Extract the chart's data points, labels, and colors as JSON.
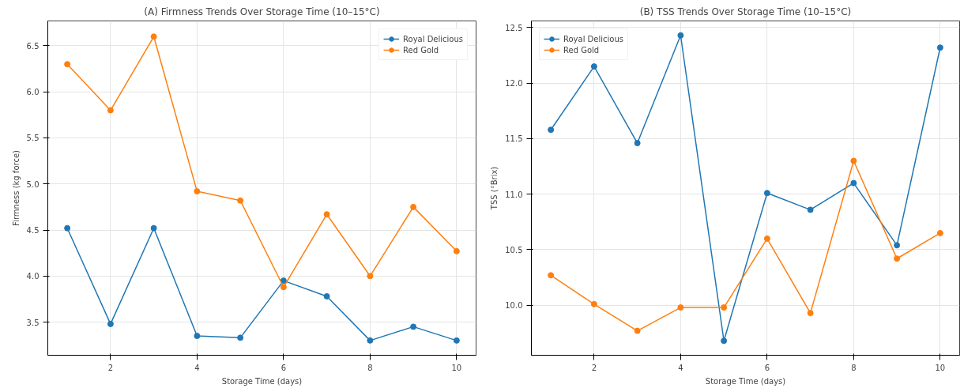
{
  "chart_data": [
    {
      "type": "line",
      "title": "(A) Firmness Trends Over Storage Time (10–15°C)",
      "xlabel": "Storage Time (days)",
      "ylabel": "Firmness (kg force)",
      "x": [
        1,
        2,
        3,
        4,
        5,
        6,
        7,
        8,
        9,
        10
      ],
      "series": [
        {
          "name": "Royal Delicious",
          "color": "#1f77b4",
          "values": [
            4.52,
            3.48,
            4.52,
            3.35,
            3.33,
            3.95,
            3.78,
            3.3,
            3.45,
            3.3
          ]
        },
        {
          "name": "Red Gold",
          "color": "#ff7f0e",
          "values": [
            6.3,
            5.8,
            6.6,
            4.92,
            4.82,
            3.88,
            4.67,
            4.0,
            4.75,
            4.27
          ]
        }
      ],
      "xlim": [
        0.55,
        10.45
      ],
      "xticks": [
        2,
        4,
        6,
        8,
        10
      ],
      "ylim": [
        3.14,
        6.77
      ],
      "yticks": [
        3.5,
        {
          "value": 4,
          "label": "4.0"
        },
        4.5,
        {
          "value": 5,
          "label": "5.0"
        },
        5.5,
        {
          "value": 6,
          "label": "6.0"
        },
        6.5
      ],
      "grid": true,
      "legend": "top right",
      "marker": "circle",
      "line_style": "solid"
    },
    {
      "type": "line",
      "title": "(B) TSS Trends Over Storage Time (10–15°C)",
      "xlabel": "Storage Time (days)",
      "ylabel": "TSS (°Brix)",
      "x": [
        1,
        2,
        3,
        4,
        5,
        6,
        7,
        8,
        9,
        10
      ],
      "series": [
        {
          "name": "Royal Delicious",
          "color": "#1f77b4",
          "values": [
            11.58,
            12.15,
            11.46,
            12.43,
            9.68,
            11.01,
            10.86,
            11.1,
            10.54,
            12.32
          ]
        },
        {
          "name": "Red Gold",
          "color": "#ff7f0e",
          "values": [
            10.27,
            10.01,
            9.77,
            9.98,
            9.98,
            10.6,
            9.93,
            11.3,
            10.42,
            10.65
          ]
        }
      ],
      "xlim": [
        0.55,
        10.45
      ],
      "xticks": [
        2,
        4,
        6,
        8,
        10
      ],
      "ylim": [
        9.55,
        12.56
      ],
      "yticks": [
        {
          "value": 10,
          "label": "10.0"
        },
        10.5,
        {
          "value": 11,
          "label": "11.0"
        },
        11.5,
        {
          "value": 12,
          "label": "12.0"
        },
        12.5
      ],
      "grid": true,
      "legend": "top left",
      "marker": "circle",
      "line_style": "solid"
    }
  ]
}
